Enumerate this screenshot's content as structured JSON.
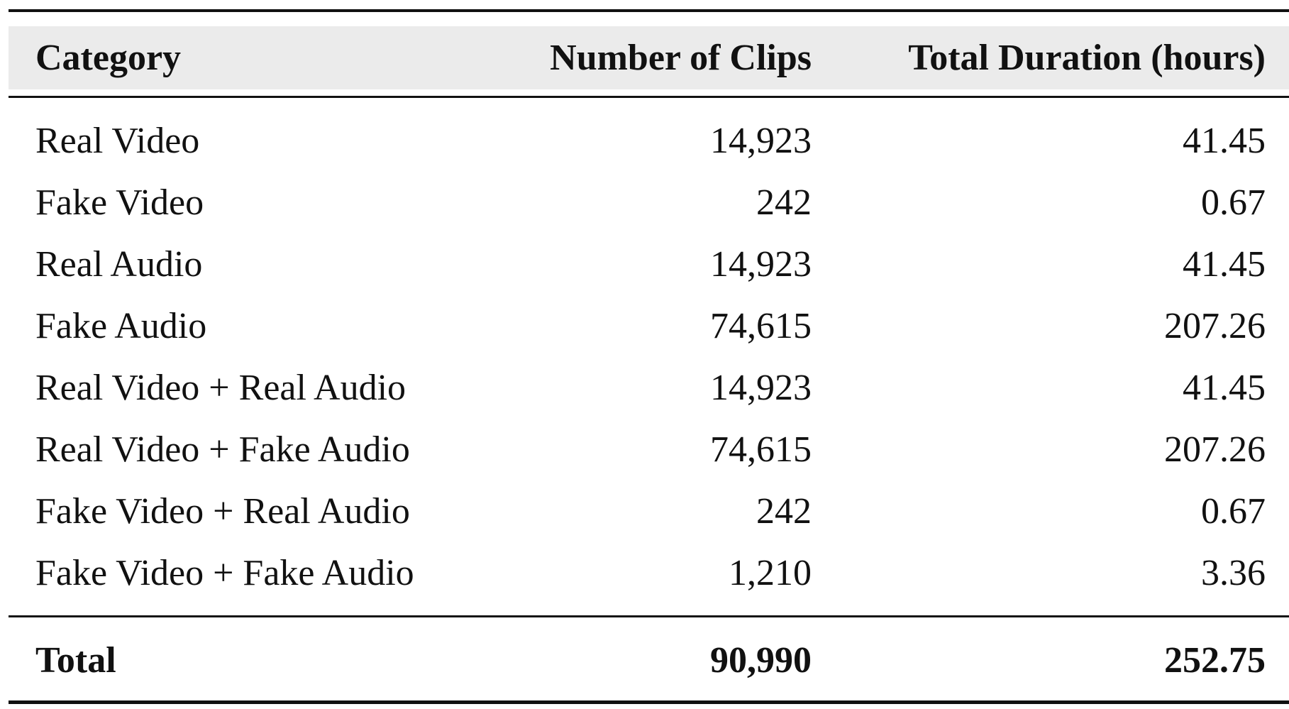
{
  "table": {
    "headers": {
      "category": "Category",
      "clips": "Number of Clips",
      "duration": "Total Duration (hours)"
    },
    "rows": [
      {
        "category": "Real Video",
        "clips": "14,923",
        "duration": "41.45"
      },
      {
        "category": "Fake Video",
        "clips": "242",
        "duration": "0.67"
      },
      {
        "category": "Real Audio",
        "clips": "14,923",
        "duration": "41.45"
      },
      {
        "category": "Fake Audio",
        "clips": "74,615",
        "duration": "207.26"
      },
      {
        "category": "Real Video + Real Audio",
        "clips": "14,923",
        "duration": "41.45"
      },
      {
        "category": "Real Video + Fake Audio",
        "clips": "74,615",
        "duration": "207.26"
      },
      {
        "category": "Fake Video + Real Audio",
        "clips": "242",
        "duration": "0.67"
      },
      {
        "category": "Fake Video + Fake Audio",
        "clips": "1,210",
        "duration": "3.36"
      }
    ],
    "total": {
      "category": "Total",
      "clips": "90,990",
      "duration": "252.75"
    }
  }
}
